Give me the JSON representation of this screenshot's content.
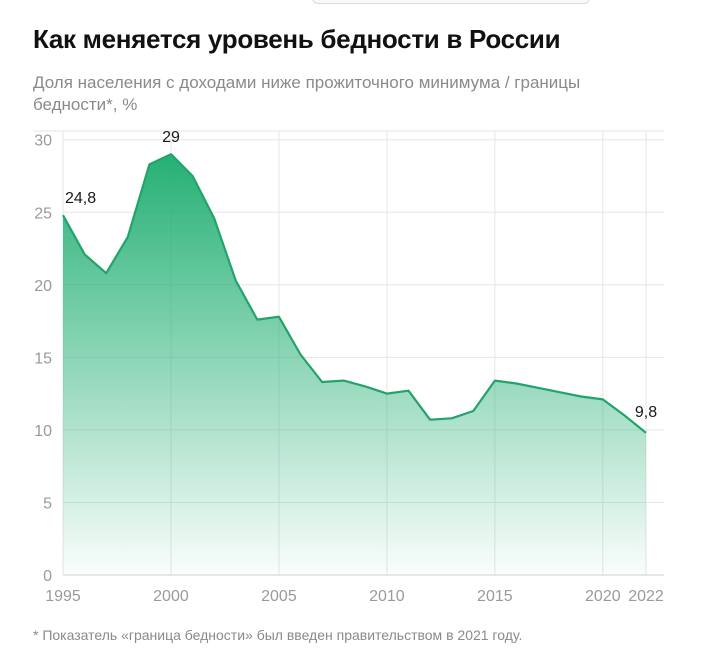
{
  "header": {
    "title": "Как меняется уровень бедности в России",
    "subtitle": "Доля населения с доходами ниже прожиточного минимума / границы бедности*, %"
  },
  "footnote": "* Показатель «граница бедности» был введен правительством в 2021 году.",
  "colors": {
    "line": "#22a36c",
    "fill_top": "#25b075",
    "fill_bottom": "#ffffff",
    "grid": "#e6e6e6",
    "tick": "#9a9a9a",
    "label": "#1a1a1a"
  },
  "chart_data": {
    "type": "area",
    "title": "Как меняется уровень бедности в России",
    "subtitle": "Доля населения с доходами ниже прожиточного минимума / границы бедности*, %",
    "xlabel": "",
    "ylabel": "",
    "xlim": [
      1995,
      2022
    ],
    "ylim": [
      0,
      30
    ],
    "x_ticks": [
      1995,
      2000,
      2005,
      2010,
      2015,
      2020,
      2022
    ],
    "y_ticks": [
      0,
      5,
      10,
      15,
      20,
      25,
      30
    ],
    "grid": true,
    "series": [
      {
        "x": [
          1995,
          1996,
          1997,
          1998,
          1999,
          2000,
          2001,
          2002,
          2003,
          2004,
          2005,
          2006,
          2007,
          2008,
          2009,
          2010,
          2011,
          2012,
          2013,
          2014,
          2015,
          2016,
          2017,
          2018,
          2019,
          2020,
          2021,
          2022
        ],
        "values": [
          24.8,
          22.1,
          20.8,
          23.3,
          28.3,
          29.0,
          27.5,
          24.6,
          20.3,
          17.6,
          17.8,
          15.2,
          13.3,
          13.4,
          13.0,
          12.5,
          12.7,
          10.7,
          10.8,
          11.3,
          13.4,
          13.2,
          12.9,
          12.6,
          12.3,
          12.1,
          11.0,
          9.8
        ]
      }
    ],
    "annotations": [
      {
        "x": 1995,
        "y": 24.8,
        "label": "24,8"
      },
      {
        "x": 2000,
        "y": 29.0,
        "label": "29"
      },
      {
        "x": 2022,
        "y": 9.8,
        "label": "9,8"
      }
    ]
  }
}
